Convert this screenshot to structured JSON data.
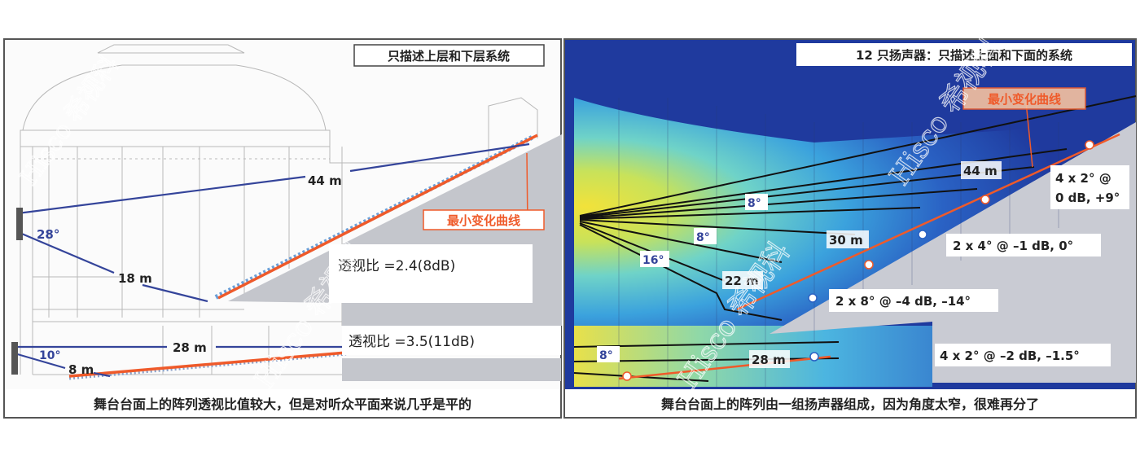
{
  "left_panel": {
    "title": "只描述上层和下层系统",
    "curve_label": "最小变化曲线",
    "distances": {
      "upper_far": "44 m",
      "upper_near": "18 m",
      "lower_far": "28 m",
      "lower_near": "8 m"
    },
    "angles": {
      "upper": "28°",
      "lower": "10°"
    },
    "ratio_upper": "透视比 =2.4(8dB)",
    "ratio_lower": "透视比 =3.5(11dB)",
    "caption": "舞台台面上的阵列透视比值较大，但是对听众平面来说几乎是平的"
  },
  "right_panel": {
    "title": "12 只扬声器：只描述上面和下面的系统",
    "curve_label": "最小变化曲线",
    "distances": {
      "d44": "44 m",
      "d30": "30 m",
      "d22": "22 m",
      "d28": "28 m"
    },
    "angles": {
      "a8_top": "8°",
      "a8_mid": "8°",
      "a16": "16°",
      "a8_low": "8°"
    },
    "zones": {
      "z1_line1": "4 x 2° @",
      "z1_line2": "0 dB, +9°",
      "z2": "2 x 4° @ –1 dB, 0°",
      "z3": "2 x 8° @ –4 dB, –14°",
      "z4": "4 x 2° @ –2 dB, –1.5°"
    },
    "caption": "舞台台面上的阵列由一组扬声器组成，因为角度太窄，很难再分了"
  },
  "watermark": "Hisco 希视科",
  "colors": {
    "blue_line": "#34449a",
    "orange_curve": "#ef5a2a",
    "heat_blue": "#1f3fa8",
    "slope_gray": "#b9bcc4"
  }
}
